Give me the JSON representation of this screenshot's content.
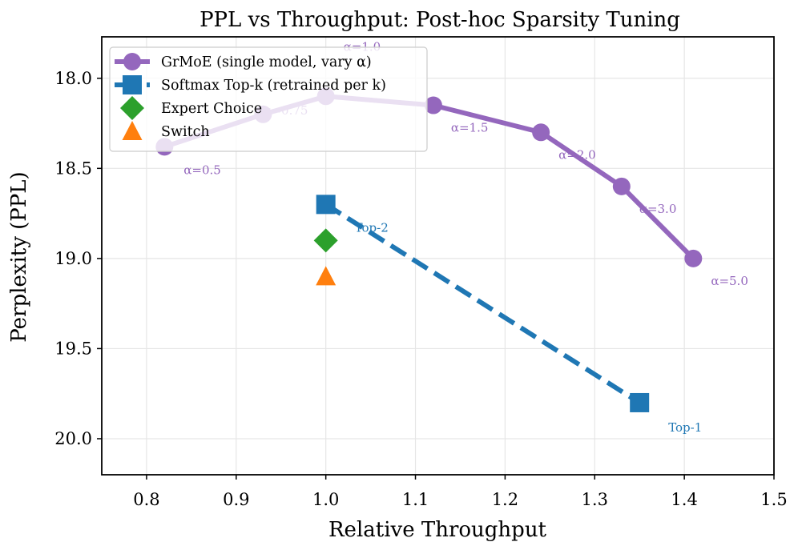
{
  "chart_data": {
    "type": "scatter",
    "title": "PPL vs Throughput: Post-hoc Sparsity Tuning",
    "xlabel": "Relative Throughput",
    "ylabel": "Perplexity (PPL)",
    "xlim": [
      0.75,
      1.5
    ],
    "ylim": [
      20.2,
      17.77
    ],
    "y_inverted": true,
    "grid": true,
    "xticks": [
      "0.8",
      "0.9",
      "1.0",
      "1.1",
      "1.2",
      "1.3",
      "1.4",
      "1.5"
    ],
    "xtick_values": [
      0.8,
      0.9,
      1.0,
      1.1,
      1.2,
      1.3,
      1.4,
      1.5
    ],
    "yticks": [
      "18.0",
      "18.5",
      "19.0",
      "19.5",
      "20.0"
    ],
    "ytick_values": [
      18.0,
      18.5,
      19.0,
      19.5,
      20.0
    ],
    "legend_position": "top-left",
    "series": [
      {
        "name": "GrMoE (single model, vary α)",
        "color": "#9467bd",
        "marker": "circle",
        "line": "solid",
        "x": [
          0.82,
          0.93,
          1.0,
          1.12,
          1.24,
          1.33,
          1.41
        ],
        "y": [
          18.38,
          18.2,
          18.1,
          18.15,
          18.3,
          18.6,
          19.0
        ],
        "labels": [
          "α=0.5",
          "α=0.75",
          "α=1.0",
          "α=1.5",
          "α=2.0",
          "α=3.0",
          "α=5.0"
        ]
      },
      {
        "name": "Softmax Top-k (retrained per k)",
        "color": "#1f77b4",
        "marker": "square",
        "line": "dashed",
        "x": [
          1.0,
          1.35
        ],
        "y": [
          18.7,
          19.8
        ],
        "labels": [
          "Top-2",
          "Top-1"
        ]
      },
      {
        "name": "Expert Choice",
        "color": "#2ca02c",
        "marker": "diamond",
        "line": "none",
        "x": [
          1.0
        ],
        "y": [
          18.9
        ],
        "labels": []
      },
      {
        "name": "Switch",
        "color": "#ff7f0e",
        "marker": "triangle",
        "line": "none",
        "x": [
          1.0
        ],
        "y": [
          19.1
        ],
        "labels": []
      }
    ]
  }
}
